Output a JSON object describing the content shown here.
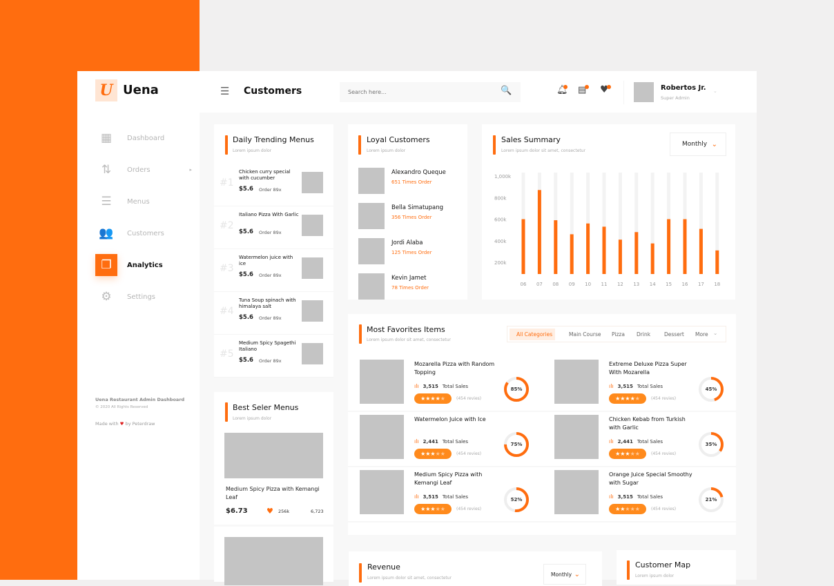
{
  "brand": {
    "name": "Uena",
    "logo_letter": "U",
    "accent": "#ff6d0f"
  },
  "header": {
    "title": "Customers",
    "search_placeholder": "Search here...",
    "user_name": "Robertos Jr.",
    "user_role": "Super Admin"
  },
  "sidebar": {
    "items": [
      {
        "label": "Dashboard",
        "icon": "dashboard-icon",
        "glyph": "▦"
      },
      {
        "label": "Orders",
        "icon": "arrows-updown-icon",
        "glyph": "⇅"
      },
      {
        "label": "Menus",
        "icon": "menu-list-icon",
        "glyph": "☰"
      },
      {
        "label": "Customers",
        "icon": "users-icon",
        "glyph": "👥"
      },
      {
        "label": "Analytics",
        "icon": "document-icon",
        "glyph": "❐",
        "active": true
      },
      {
        "label": "Settings",
        "icon": "gear-icon",
        "glyph": "⚙"
      }
    ],
    "footer_title": "Uena Restaurant Admin Dashboard",
    "footer_copy": "© 2020 All Rights Reserved",
    "made_with": "Made with",
    "made_by": "by Peterdraw"
  },
  "trending": {
    "title": "Daily Trending Menus",
    "subtitle": "Lorem ipsum dolor",
    "items": [
      {
        "rank": "#1",
        "name": "Chicken curry special with cucumber",
        "price": "$5.6",
        "orders": "Order 89x"
      },
      {
        "rank": "#2",
        "name": "Italiano Pizza With Garlic",
        "price": "$5.6",
        "orders": "Order 89x"
      },
      {
        "rank": "#3",
        "name": "Watermelon juice with ice",
        "price": "$5.6",
        "orders": "Order 89x"
      },
      {
        "rank": "#4",
        "name": "Tuna Soup spinach with himalaya salt",
        "price": "$5.6",
        "orders": "Order 89x"
      },
      {
        "rank": "#5",
        "name": "Medium Spicy Spagethi Italiano",
        "price": "$5.6",
        "orders": "Order 89x"
      }
    ]
  },
  "loyal": {
    "title": "Loyal Customers",
    "subtitle": "Lorem ipsum dolor",
    "items": [
      {
        "name": "Alexandro Queque",
        "orders": "651 Times Order"
      },
      {
        "name": "Bella Simatupang",
        "orders": "356 Times Order"
      },
      {
        "name": "Jordi Alaba",
        "orders": "125 Times Order"
      },
      {
        "name": "Kevin Jamet",
        "orders": "78 Times Order"
      }
    ]
  },
  "sales": {
    "title": "Sales Summary",
    "subtitle": "Lorem ipsum dolor sit amet, consectetur",
    "period": "Monthly"
  },
  "chart_data": {
    "type": "bar",
    "categories": [
      "06",
      "07",
      "08",
      "09",
      "10",
      "11",
      "12",
      "13",
      "14",
      "15",
      "16",
      "17",
      "18"
    ],
    "values": [
      600,
      870,
      590,
      460,
      560,
      530,
      410,
      480,
      375,
      600,
      600,
      510,
      310
    ],
    "yticks": [
      "1,000k",
      "800k",
      "600k",
      "400k",
      "200k"
    ],
    "ylim": [
      0,
      1000
    ],
    "unit": "k",
    "grid": false
  },
  "favorites": {
    "title": "Most Favorites Items",
    "subtitle": "Lorem ipsum dolor sit amet, consectetur",
    "tabs": [
      "All Categories",
      "Main Course",
      "Pizza",
      "Drink",
      "Dessert",
      "More"
    ],
    "active_tab": 0,
    "items": [
      {
        "name": "Mozarella Pizza with Random Topping",
        "sales": "3,515",
        "sales_label": "Total Sales",
        "stars": 4,
        "reviews": "(454 revies)",
        "percent": 85
      },
      {
        "name": "Extreme Deluxe Pizza Super With Mozarella",
        "sales": "3,515",
        "sales_label": "Total Sales",
        "stars": 4,
        "reviews": "(454 revies)",
        "percent": 45
      },
      {
        "name": "Watermelon Juice with Ice",
        "sales": "2,441",
        "sales_label": "Total Sales",
        "stars": 3,
        "reviews": "(454 revies)",
        "percent": 75
      },
      {
        "name": "Chicken Kebab from Turkish with Garlic",
        "sales": "2,441",
        "sales_label": "Total Sales",
        "stars": 3,
        "reviews": "(454 revies)",
        "percent": 35
      },
      {
        "name": "Medium Spicy Pizza with Kemangi Leaf",
        "sales": "3,515",
        "sales_label": "Total Sales",
        "stars": 3,
        "reviews": "(454 revies)",
        "percent": 52
      },
      {
        "name": "Orange Juice Special Smoothy with Sugar",
        "sales": "3,515",
        "sales_label": "Total Sales",
        "stars": 2,
        "reviews": "(454 revies)",
        "percent": 21
      }
    ]
  },
  "bestseller": {
    "title": "Best Seler Menus",
    "subtitle": "Lorem ipsum dolor",
    "name": "Medium Spicy Pizza with Kemangi Leaf",
    "price": "$6.73",
    "likes": "256k",
    "count": "6,723"
  },
  "revenue": {
    "title": "Revenue",
    "subtitle": "Lorem ipsum dolor sit amet, consectetur",
    "period": "Monthly"
  },
  "map": {
    "title": "Customer Map",
    "subtitle": "Lorem ipsum dolor"
  }
}
